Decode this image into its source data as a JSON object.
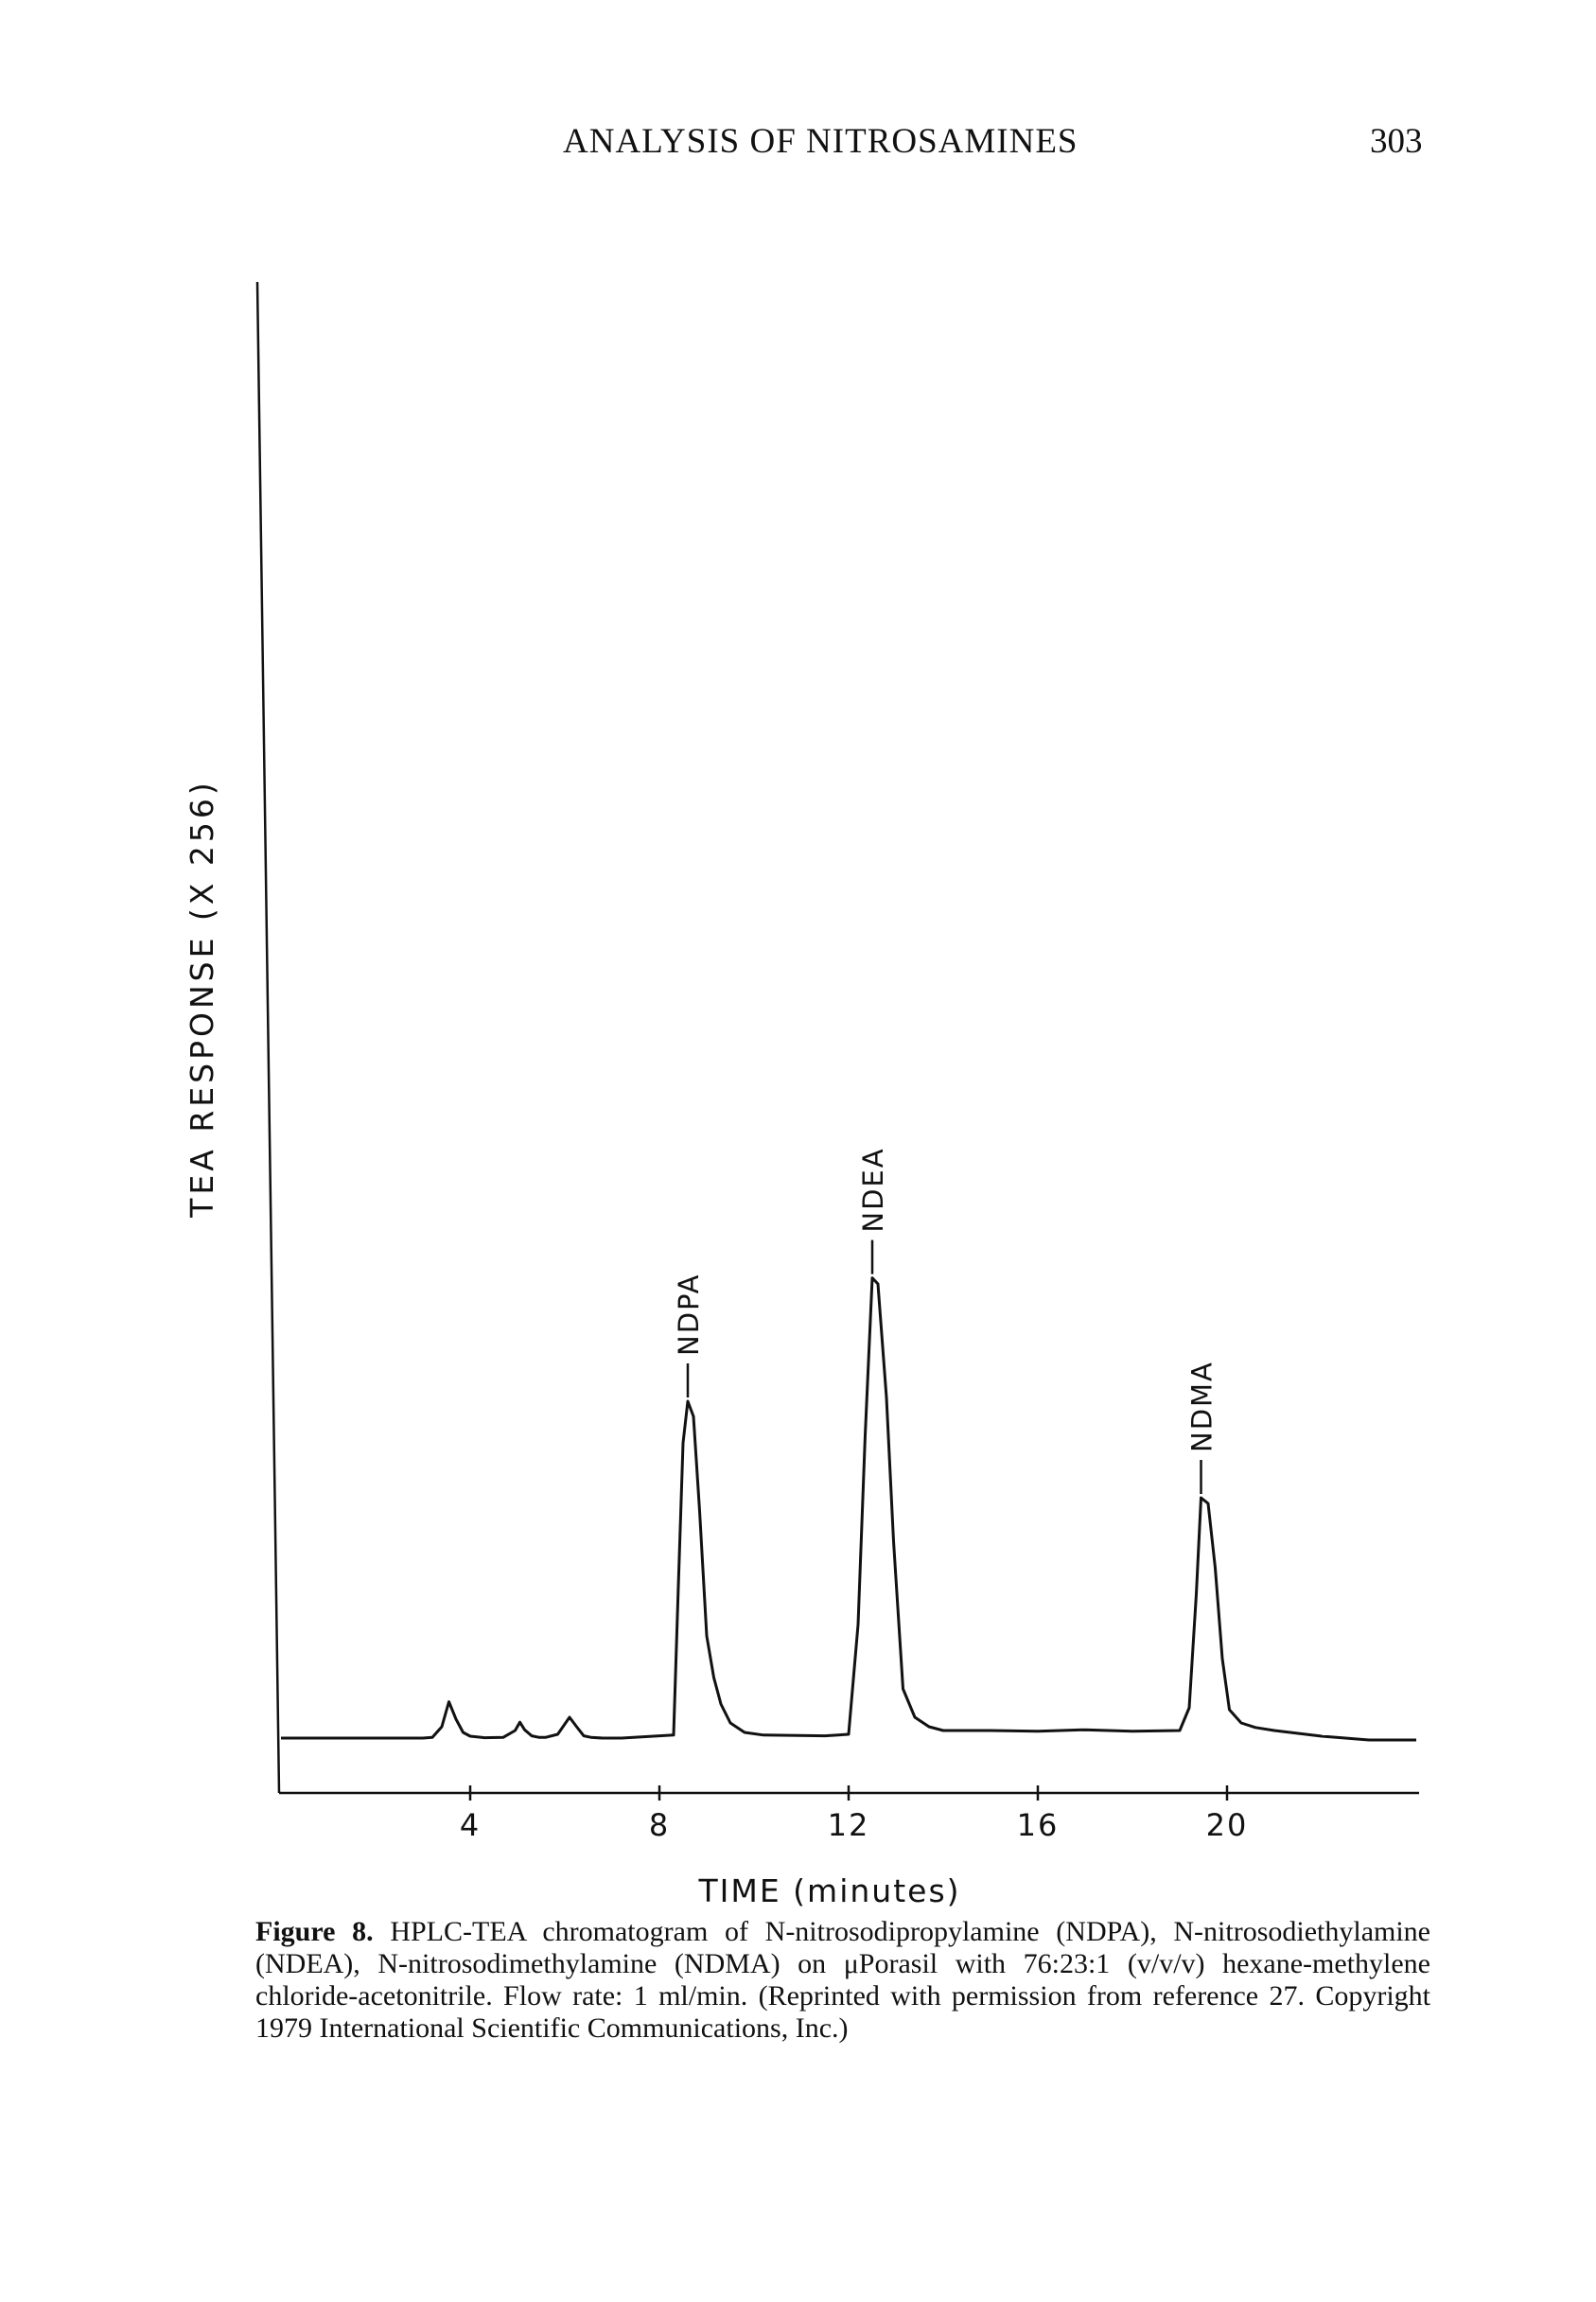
{
  "header": {
    "title": "ANALYSIS OF NITROSAMINES",
    "page_number": "303"
  },
  "chart_data": {
    "type": "line",
    "xlabel": "TIME (minutes)",
    "ylabel": "TEA RESPONSE (X 256)",
    "x_ticks": [
      4,
      8,
      12,
      16,
      20
    ],
    "xlim": [
      0,
      24
    ],
    "series": [
      {
        "x": [
          0.0,
          3.0,
          3.2,
          3.4,
          3.55,
          3.7,
          3.85,
          4.0,
          4.3,
          4.7,
          4.95,
          5.05,
          5.15,
          5.3,
          5.45,
          5.6,
          5.85,
          6.1,
          6.25,
          6.4,
          6.55,
          6.8,
          7.2,
          8.3,
          8.4,
          8.5,
          8.6,
          8.72,
          8.85,
          9.0,
          9.15,
          9.3,
          9.5,
          9.8,
          10.2,
          11.5,
          12.0,
          12.2,
          12.35,
          12.5,
          12.62,
          12.8,
          12.95,
          13.15,
          13.4,
          13.7,
          14.0,
          15.0,
          16.0,
          17.0,
          18.0,
          19.0,
          19.2,
          19.35,
          19.45,
          19.6,
          19.75,
          19.9,
          20.05,
          20.3,
          20.6,
          21.0,
          22.0,
          23.0,
          24.0
        ],
        "y": [
          0.0,
          0.0,
          0.02,
          0.3,
          0.96,
          0.5,
          0.15,
          0.05,
          0.01,
          0.02,
          0.2,
          0.42,
          0.22,
          0.06,
          0.02,
          0.02,
          0.1,
          0.55,
          0.3,
          0.06,
          0.02,
          0.0,
          0.0,
          0.08,
          4.0,
          7.8,
          8.9,
          8.5,
          6.0,
          2.7,
          1.6,
          0.9,
          0.4,
          0.15,
          0.08,
          0.06,
          0.1,
          3.0,
          8.0,
          12.16,
          12.0,
          9.0,
          5.2,
          1.3,
          0.55,
          0.3,
          0.2,
          0.2,
          0.18,
          0.22,
          0.18,
          0.2,
          0.8,
          3.8,
          6.35,
          6.2,
          4.5,
          2.1,
          0.75,
          0.4,
          0.28,
          0.2,
          0.05,
          -0.05,
          -0.05
        ]
      }
    ],
    "peaks": [
      {
        "label": "NDPA",
        "x": 8.6,
        "y": 8.9
      },
      {
        "label": "NDEA",
        "x": 12.5,
        "y": 12.16
      },
      {
        "label": "NDMA",
        "x": 19.45,
        "y": 6.35
      }
    ]
  },
  "caption": {
    "lead": "Figure 8.",
    "text": "HPLC-TEA chromatogram of N-nitrosodipropylamine (NDPA), N-nitrosodiethylamine (NDEA), N-nitrosodimethylamine (NDMA) on μPorasil with 76:23:1 (v/v/v) hexane-methylene chloride-acetonitrile. Flow rate: 1 ml/min. (Reprinted with permission from reference 27. Copyright 1979 International Scientific Communications, Inc.)"
  }
}
